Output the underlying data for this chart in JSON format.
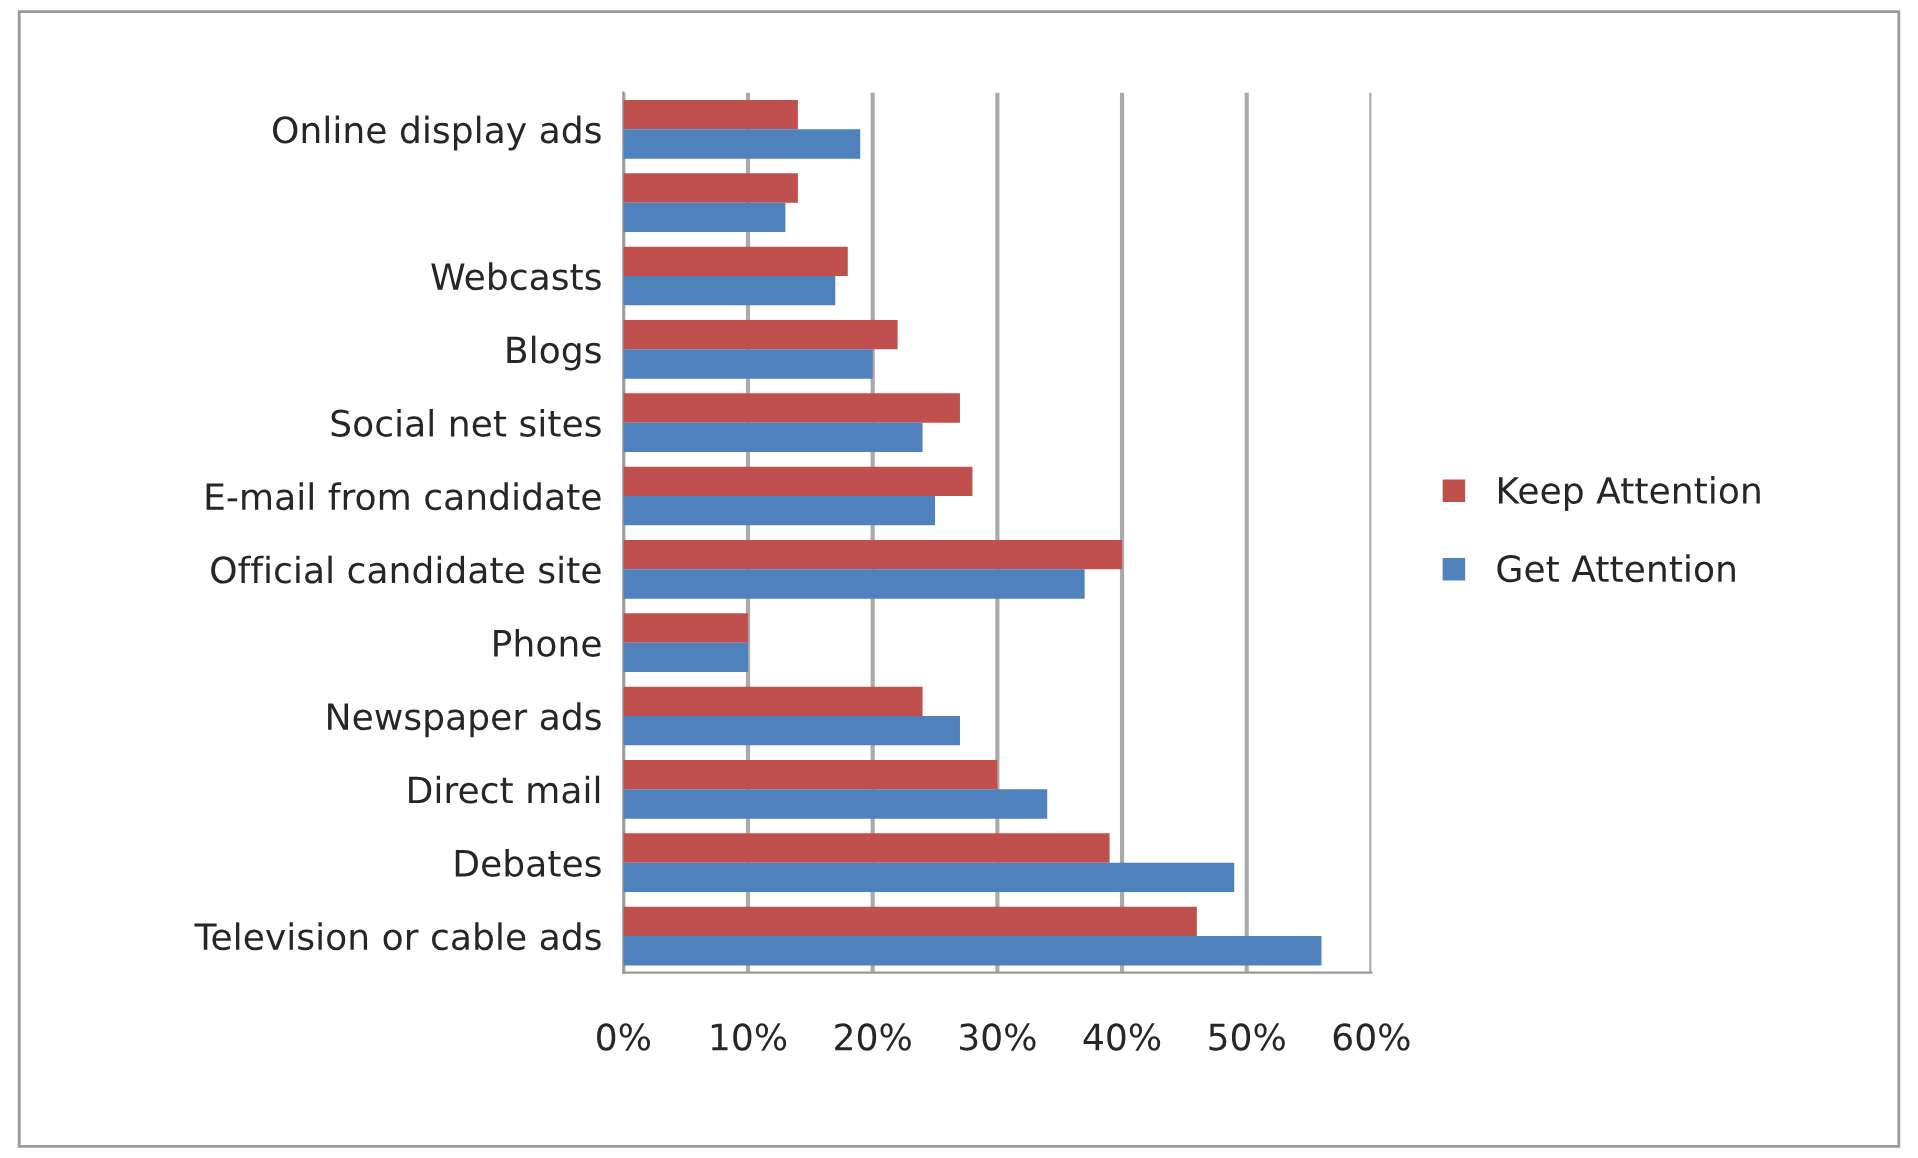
{
  "chart_data": {
    "type": "bar",
    "orientation": "horizontal",
    "categories": [
      "Online display ads",
      null,
      "Webcasts",
      "Blogs",
      "Social net sites",
      "E-mail from candidate",
      "Official candidate site",
      "Phone",
      "Newspaper ads",
      "Direct mail",
      "Debates",
      "Television or cable ads"
    ],
    "series": [
      {
        "name": "Keep Attention",
        "color": "#c0504d",
        "values": [
          14,
          14,
          18,
          22,
          27,
          28,
          40,
          10,
          24,
          30,
          39,
          46
        ]
      },
      {
        "name": "Get Attention",
        "color": "#4f81bd",
        "values": [
          19,
          13,
          17,
          20,
          24,
          25,
          37,
          10,
          27,
          34,
          49,
          56
        ]
      }
    ],
    "xlim": [
      0,
      60
    ],
    "xticks": [
      {
        "value": 0,
        "label": "0%"
      },
      {
        "value": 10,
        "label": "10%"
      },
      {
        "value": 20,
        "label": "20%"
      },
      {
        "value": 30,
        "label": "30%"
      },
      {
        "value": 40,
        "label": "40%"
      },
      {
        "value": 50,
        "label": "50%"
      },
      {
        "value": 60,
        "label": "60%"
      }
    ],
    "grid": "x",
    "legend": "right"
  }
}
